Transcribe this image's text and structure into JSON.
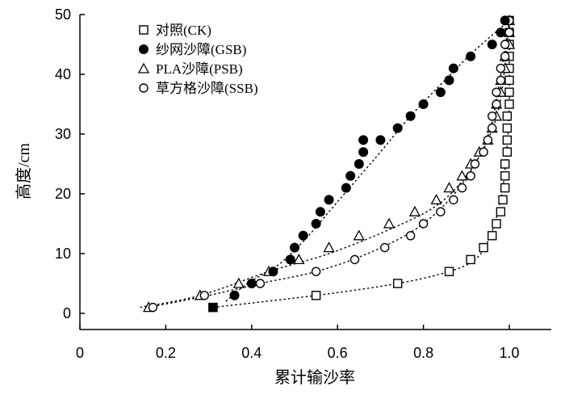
{
  "chart_data": {
    "type": "scatter",
    "xlabel": "累计输沙率",
    "ylabel": "高度/cm",
    "xlim": [
      0,
      1.1
    ],
    "ylim": [
      -3,
      50
    ],
    "xticks": [
      "0",
      "0.2",
      "0.4",
      "0.6",
      "0.8",
      "1.0"
    ],
    "xtick_values": [
      0,
      0.2,
      0.4,
      0.6,
      0.8,
      1.0
    ],
    "yticks": [
      "0",
      "10",
      "20",
      "30",
      "40",
      "50"
    ],
    "ytick_values": [
      0,
      10,
      20,
      30,
      40,
      50
    ],
    "grid": false,
    "legend_position": "top-left",
    "series": [
      {
        "name": "对照(CK)",
        "marker": "open-square",
        "points": [
          [
            0.31,
            1
          ],
          [
            0.55,
            3
          ],
          [
            0.74,
            5
          ],
          [
            0.86,
            7
          ],
          [
            0.91,
            9
          ],
          [
            0.94,
            11
          ],
          [
            0.96,
            13
          ],
          [
            0.97,
            15
          ],
          [
            0.98,
            17
          ],
          [
            0.985,
            19
          ],
          [
            0.99,
            21
          ],
          [
            0.99,
            23
          ],
          [
            0.99,
            25
          ],
          [
            0.995,
            27
          ],
          [
            0.995,
            29
          ],
          [
            0.995,
            31
          ],
          [
            0.995,
            33
          ],
          [
            1.0,
            35
          ],
          [
            1.0,
            37
          ],
          [
            1.0,
            39
          ],
          [
            1.0,
            41
          ],
          [
            1.0,
            43
          ],
          [
            1.0,
            45
          ],
          [
            1.0,
            47
          ],
          [
            1.0,
            49
          ]
        ]
      },
      {
        "name": "纱网沙障(GSB)",
        "marker": "filled-circle",
        "points": [
          [
            0.36,
            3
          ],
          [
            0.4,
            5
          ],
          [
            0.45,
            7
          ],
          [
            0.49,
            9
          ],
          [
            0.5,
            11
          ],
          [
            0.52,
            13
          ],
          [
            0.55,
            15
          ],
          [
            0.56,
            17
          ],
          [
            0.58,
            19
          ],
          [
            0.62,
            21
          ],
          [
            0.63,
            23
          ],
          [
            0.65,
            25
          ],
          [
            0.66,
            27
          ],
          [
            0.66,
            29
          ],
          [
            0.7,
            29
          ],
          [
            0.74,
            31
          ],
          [
            0.77,
            33
          ],
          [
            0.8,
            35
          ],
          [
            0.84,
            37
          ],
          [
            0.86,
            39
          ],
          [
            0.87,
            41
          ],
          [
            0.91,
            43
          ],
          [
            0.96,
            45
          ],
          [
            0.98,
            47
          ],
          [
            0.99,
            49
          ]
        ]
      },
      {
        "name": "PLA沙障(PSB)",
        "marker": "open-triangle",
        "points": [
          [
            0.16,
            1
          ],
          [
            0.28,
            3
          ],
          [
            0.37,
            5
          ],
          [
            0.44,
            7
          ],
          [
            0.51,
            9
          ],
          [
            0.58,
            11
          ],
          [
            0.65,
            13
          ],
          [
            0.72,
            15
          ],
          [
            0.78,
            17
          ],
          [
            0.83,
            19
          ],
          [
            0.86,
            21
          ],
          [
            0.89,
            23
          ],
          [
            0.91,
            25
          ],
          [
            0.93,
            27
          ],
          [
            0.95,
            29
          ],
          [
            0.96,
            31
          ],
          [
            0.97,
            33
          ],
          [
            0.97,
            35
          ],
          [
            0.98,
            37
          ],
          [
            0.98,
            39
          ],
          [
            0.99,
            41
          ],
          [
            0.99,
            43
          ],
          [
            1.0,
            45
          ],
          [
            1.0,
            47
          ],
          [
            1.0,
            49
          ]
        ]
      },
      {
        "name": "草方格沙障(SSB)",
        "marker": "open-circle",
        "points": [
          [
            0.17,
            1
          ],
          [
            0.29,
            3
          ],
          [
            0.42,
            5
          ],
          [
            0.55,
            7
          ],
          [
            0.64,
            9
          ],
          [
            0.71,
            11
          ],
          [
            0.77,
            13
          ],
          [
            0.8,
            15
          ],
          [
            0.84,
            17
          ],
          [
            0.87,
            19
          ],
          [
            0.89,
            21
          ],
          [
            0.91,
            23
          ],
          [
            0.92,
            25
          ],
          [
            0.94,
            27
          ],
          [
            0.95,
            29
          ],
          [
            0.96,
            31
          ],
          [
            0.96,
            33
          ],
          [
            0.97,
            35
          ],
          [
            0.97,
            37
          ],
          [
            0.98,
            39
          ],
          [
            0.98,
            41
          ],
          [
            0.99,
            43
          ],
          [
            0.99,
            45
          ],
          [
            1.0,
            47
          ],
          [
            1.0,
            49
          ]
        ]
      }
    ],
    "highlighted_point": {
      "x": 0.31,
      "y": 1,
      "marker": "filled-square"
    },
    "trend_lines": [
      {
        "series": "对照(CK)",
        "points": [
          [
            0.31,
            1
          ],
          [
            0.55,
            3
          ],
          [
            0.74,
            5
          ],
          [
            0.86,
            7
          ],
          [
            0.92,
            9
          ],
          [
            0.95,
            12
          ],
          [
            0.97,
            16
          ],
          [
            0.985,
            21
          ],
          [
            0.995,
            28
          ],
          [
            1.0,
            35
          ],
          [
            1.0,
            42
          ],
          [
            1.0,
            49
          ]
        ]
      },
      {
        "series": "纱网沙障(GSB)",
        "points": [
          [
            0.34,
            2
          ],
          [
            0.39,
            5
          ],
          [
            0.46,
            8
          ],
          [
            0.52,
            12
          ],
          [
            0.58,
            17
          ],
          [
            0.64,
            22
          ],
          [
            0.7,
            27
          ],
          [
            0.77,
            33
          ],
          [
            0.85,
            39
          ],
          [
            0.92,
            44
          ],
          [
            1.0,
            49
          ]
        ]
      },
      {
        "series": "PLA沙障(PSB)",
        "points": [
          [
            0.14,
            1
          ],
          [
            0.28,
            3
          ],
          [
            0.44,
            7
          ],
          [
            0.58,
            10
          ],
          [
            0.72,
            14
          ],
          [
            0.83,
            18
          ],
          [
            0.9,
            23
          ],
          [
            0.95,
            29
          ],
          [
            0.98,
            36
          ],
          [
            1.0,
            49
          ]
        ]
      },
      {
        "series": "草方格沙障(SSB)",
        "points": [
          [
            0.16,
            1
          ],
          [
            0.3,
            3
          ],
          [
            0.42,
            5
          ],
          [
            0.55,
            7
          ],
          [
            0.67,
            10
          ],
          [
            0.78,
            14
          ],
          [
            0.86,
            19
          ],
          [
            0.92,
            25
          ],
          [
            0.96,
            32
          ],
          [
            1.0,
            49
          ]
        ]
      }
    ]
  }
}
